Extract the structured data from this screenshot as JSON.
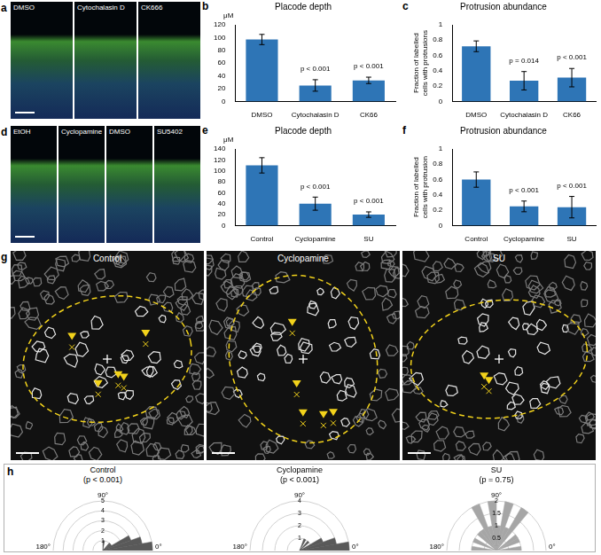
{
  "panels": {
    "a": {
      "letter": "a",
      "labels": [
        "DMSO",
        "Cytochalasin D",
        "CK666"
      ]
    },
    "d": {
      "letter": "d",
      "labels": [
        "EtOH",
        "Cyclopamine",
        "DMSO",
        "SU5402"
      ]
    },
    "g": {
      "letter": "g",
      "labels": [
        "Control",
        "Cyclopamine",
        "SU"
      ]
    }
  },
  "chart_data": [
    {
      "panel": "b",
      "type": "bar",
      "title": "Placode depth",
      "y_unit": "μM",
      "categories": [
        "DMSO",
        "Cytochalasin D",
        "CK66"
      ],
      "values": [
        97,
        25,
        33
      ],
      "errors": [
        8,
        9,
        5
      ],
      "annotations": [
        null,
        "p < 0.001",
        "p < 0.001"
      ],
      "ylim": [
        0,
        120
      ],
      "yticks": [
        0,
        20,
        40,
        60,
        80,
        100,
        120
      ],
      "color": "#2e75b6",
      "grid": false
    },
    {
      "panel": "c",
      "type": "bar",
      "title": "Protrusion abundance",
      "y_label": "Fraction of labelled cells with protrusions",
      "categories": [
        "DMSO",
        "Cytochalasin D",
        "CK66"
      ],
      "values": [
        0.72,
        0.27,
        0.31
      ],
      "errors": [
        0.07,
        0.12,
        0.12
      ],
      "annotations": [
        null,
        "p = 0.014",
        "p < 0.001"
      ],
      "ylim": [
        0,
        1
      ],
      "yticks": [
        0,
        0.2,
        0.4,
        0.6,
        0.8,
        1
      ],
      "color": "#2e75b6",
      "grid": false
    },
    {
      "panel": "e",
      "type": "bar",
      "title": "Placode depth",
      "y_unit": "μM",
      "categories": [
        "Control",
        "Cyclopamine",
        "SU"
      ],
      "values": [
        110,
        40,
        20
      ],
      "errors": [
        14,
        12,
        5
      ],
      "annotations": [
        null,
        "p < 0.001",
        "p < 0.001"
      ],
      "ylim": [
        0,
        140
      ],
      "yticks": [
        0,
        20,
        40,
        60,
        80,
        100,
        120,
        140
      ],
      "color": "#2e75b6",
      "grid": false
    },
    {
      "panel": "f",
      "type": "bar",
      "title": "Protrusion abundance",
      "y_label": "Fraction of labelled cells with protrusion",
      "categories": [
        "Control",
        "Cyclopamine",
        "SU"
      ],
      "values": [
        0.6,
        0.25,
        0.24
      ],
      "errors": [
        0.1,
        0.07,
        0.14
      ],
      "annotations": [
        null,
        "p < 0.001",
        "p < 0.001"
      ],
      "ylim": [
        0,
        1
      ],
      "yticks": [
        0,
        0.2,
        0.4,
        0.6,
        0.8,
        1
      ],
      "color": "#2e75b6",
      "grid": false
    },
    {
      "panel": "h",
      "type": "polar_histogram",
      "title": "Control",
      "subtitle": "(p < 0.001)",
      "bins": [
        0,
        10,
        20,
        30,
        40,
        50,
        60,
        70,
        80,
        90,
        100,
        110,
        120,
        130,
        140,
        150,
        160,
        170,
        180
      ],
      "counts": [
        5,
        4,
        3,
        1,
        1,
        0,
        0,
        0,
        1,
        0,
        0,
        0,
        0,
        0,
        0,
        0,
        0,
        0
      ],
      "rlim": [
        0,
        5
      ],
      "rticks": [
        1,
        2,
        3,
        4,
        5
      ],
      "angle_labels": [
        {
          "value": 180,
          "label": "180°"
        },
        {
          "value": 90,
          "label": "90°"
        },
        {
          "value": 0,
          "label": "0°"
        }
      ],
      "color": "#595959"
    },
    {
      "type": "polar_histogram",
      "title": "Cyclopamine",
      "subtitle": "(p < 0.001)",
      "bins": [
        0,
        10,
        20,
        30,
        40,
        50,
        60,
        70,
        80,
        90,
        100,
        110,
        120,
        130,
        140,
        150,
        160,
        170,
        180
      ],
      "counts": [
        4,
        3,
        2,
        0,
        1,
        0,
        1,
        0,
        0,
        0,
        0,
        0,
        0,
        0,
        0,
        0,
        0,
        0
      ],
      "rlim": [
        0,
        4
      ],
      "rticks": [
        1,
        2,
        3,
        4
      ],
      "angle_labels": [
        {
          "value": 180,
          "label": "180°"
        },
        {
          "value": 90,
          "label": "90°"
        },
        {
          "value": 0,
          "label": "0°"
        }
      ],
      "color": "#595959"
    },
    {
      "type": "polar_histogram",
      "title": "SU",
      "subtitle": "(p = 0.75)",
      "bins": [
        0,
        10,
        20,
        30,
        40,
        50,
        60,
        70,
        80,
        90,
        100,
        110,
        120,
        130,
        140,
        150,
        160,
        170,
        180
      ],
      "counts": [
        1,
        0,
        1,
        1,
        0,
        2,
        1,
        2,
        1,
        2,
        1,
        2,
        1,
        1,
        0,
        1,
        0,
        1
      ],
      "rlim": [
        0,
        2
      ],
      "rticks": [
        0.5,
        1,
        1.5,
        2
      ],
      "angle_labels": [
        {
          "value": 180,
          "label": "180°"
        },
        {
          "value": 90,
          "label": "90°"
        },
        {
          "value": 0,
          "label": "0°"
        }
      ],
      "color": "#a6a6a6"
    }
  ]
}
